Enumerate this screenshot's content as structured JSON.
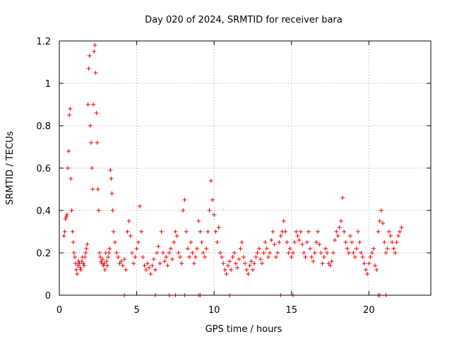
{
  "chart_data": {
    "type": "scatter",
    "title": "Day 020 of 2024, SRMTID for receiver bara",
    "xlabel": "GPS time / hours",
    "ylabel": "SRMTID / TECUs",
    "xlim": [
      0,
      24
    ],
    "ylim": [
      0,
      1.2
    ],
    "xticks": [
      0,
      5,
      10,
      15,
      20
    ],
    "yticks": [
      0,
      0.2,
      0.4,
      0.6,
      0.8,
      1,
      1.2
    ],
    "xtick_labels": [
      "0",
      "5",
      "10",
      "15",
      "20"
    ],
    "ytick_labels": [
      "0",
      "0.2",
      "0.4",
      "0.6",
      "0.8",
      "1",
      "1.2"
    ],
    "grid": true,
    "marker": "+",
    "series_color": "#ee0000",
    "series": [
      {
        "name": "SRMTID",
        "x": [
          0.0,
          0.05,
          0.1,
          0.15,
          0.2,
          0.25,
          0.3,
          0.35,
          0.4,
          0.45,
          0.5,
          0.55,
          0.6,
          0.65,
          0.7,
          0.75,
          0.8,
          0.85,
          0.9,
          0.95,
          1.0,
          1.05,
          1.1,
          1.15,
          1.2,
          1.25,
          1.3,
          1.35,
          1.4,
          1.45,
          1.5,
          1.55,
          1.6,
          1.65,
          1.7,
          1.75,
          1.8,
          1.85,
          1.9,
          1.95,
          2.0,
          2.05,
          2.1,
          2.15,
          2.2,
          2.25,
          2.3,
          2.35,
          2.4,
          2.45,
          2.5,
          2.55,
          2.6,
          2.65,
          2.7,
          2.75,
          2.8,
          2.85,
          2.9,
          2.95,
          3.0,
          3.05,
          3.1,
          3.15,
          3.2,
          3.25,
          3.3,
          3.35,
          3.4,
          3.45,
          3.5,
          3.6,
          3.7,
          3.8,
          3.9,
          4.0,
          4.1,
          4.2,
          4.3,
          4.4,
          4.5,
          4.6,
          4.7,
          4.8,
          4.9,
          5.0,
          5.1,
          5.2,
          5.3,
          5.4,
          5.5,
          5.6,
          5.7,
          5.8,
          5.9,
          6.0,
          6.1,
          6.2,
          6.3,
          6.4,
          6.5,
          6.6,
          6.7,
          6.8,
          6.9,
          7.0,
          7.1,
          7.2,
          7.3,
          7.4,
          7.5,
          7.6,
          7.7,
          7.8,
          7.9,
          8.0,
          8.1,
          8.2,
          8.3,
          8.4,
          8.5,
          8.6,
          8.7,
          8.8,
          8.9,
          9.0,
          9.1,
          9.2,
          9.3,
          9.4,
          9.5,
          9.6,
          9.7,
          9.8,
          9.9,
          10.0,
          10.1,
          10.2,
          10.3,
          10.4,
          10.5,
          10.6,
          10.7,
          10.8,
          10.9,
          11.0,
          11.1,
          11.2,
          11.3,
          11.4,
          11.5,
          11.6,
          11.7,
          11.8,
          11.9,
          12.0,
          12.1,
          12.2,
          12.3,
          12.4,
          12.5,
          12.6,
          12.7,
          12.8,
          12.9,
          13.0,
          13.1,
          13.2,
          13.3,
          13.4,
          13.5,
          13.6,
          13.7,
          13.8,
          13.9,
          14.0,
          14.1,
          14.2,
          14.3,
          14.4,
          14.5,
          14.6,
          14.7,
          14.8,
          14.9,
          15.0,
          15.1,
          15.2,
          15.3,
          15.4,
          15.5,
          15.6,
          15.7,
          15.8,
          15.9,
          16.0,
          16.1,
          16.2,
          16.3,
          16.4,
          16.5,
          16.6,
          16.7,
          16.8,
          16.9,
          17.0,
          17.1,
          17.2,
          17.3,
          17.4,
          17.5,
          17.6,
          17.7,
          17.8,
          17.9,
          18.0,
          18.1,
          18.2,
          18.3,
          18.4,
          18.5,
          18.6,
          18.7,
          18.8,
          18.9,
          19.0,
          19.1,
          19.2,
          19.3,
          19.4,
          19.5,
          19.6,
          19.7,
          19.8,
          19.9,
          20.0,
          20.1,
          20.2,
          20.3,
          20.4,
          20.5,
          20.6,
          20.7,
          20.8,
          20.9,
          21.0,
          21.1,
          21.2,
          21.3,
          21.4,
          21.5,
          21.6,
          21.7,
          21.8,
          21.9,
          22.0,
          22.1,
          22.2,
          22.3,
          22.4,
          22.5,
          22.6,
          22.7,
          0.28,
          0.3,
          0.36,
          0.37,
          0.38,
          0.6,
          0.68,
          0.85,
          0.88,
          0.55,
          0.4,
          0.3,
          0.25,
          0.2,
          0.18,
          0.15,
          0.12,
          0.1,
          0.14,
          0.16,
          0.15,
          0.13,
          0.12,
          0.16,
          0.18,
          0.15,
          0.14,
          0.18,
          0.2,
          0.22,
          0.24,
          0.9,
          1.07,
          1.13,
          0.8,
          0.72,
          0.6,
          0.5,
          0.9,
          1.15,
          1.18,
          1.05,
          0.86,
          0.72,
          0.5,
          0.4,
          0.2,
          0.18,
          0.16,
          0.15,
          0.17,
          0.14,
          0.15,
          0.12,
          0.2,
          0.16,
          0.14,
          0.18,
          0.2,
          0.22,
          0.59,
          0.55,
          0.48,
          0.4,
          0.3,
          0.25,
          0.2,
          0.18,
          0.15,
          0.16,
          0.14,
          0.17,
          0.12,
          0.3,
          0.35,
          0.28,
          0.2,
          0.15,
          0.18,
          0.22,
          0.25,
          0.42,
          0.3,
          0.18,
          0.14,
          0.12,
          0.15,
          0.13,
          0.1,
          0.14,
          0.17,
          0.12,
          0.2,
          0.23,
          0.15,
          0.3,
          0.2,
          0.16,
          0.18,
          0.14,
          0.2,
          0.22,
          0.17,
          0.25,
          0.3,
          0.28,
          0.2,
          0.18,
          0.15,
          0.4,
          0.45,
          0.3,
          0.22,
          0.18,
          0.25,
          0.2,
          0.15,
          0.18,
          0.22,
          0.35,
          0.3,
          0.25,
          0.2,
          0.18,
          0.22,
          0.3,
          0.4,
          0.54,
          0.45,
          0.38,
          0.3,
          0.25,
          0.32,
          0.2,
          0.18,
          0.15,
          0.12,
          0.1,
          0.14,
          0.16,
          0.12,
          0.18,
          0.2,
          0.15,
          0.13,
          0.17,
          0.22,
          0.25,
          0.18,
          0.15,
          0.12,
          0.1,
          0.14,
          0.16,
          0.12,
          0.15,
          0.18,
          0.2,
          0.22,
          0.17,
          0.15,
          0.2,
          0.25,
          0.22,
          0.18,
          0.2,
          0.26,
          0.3,
          0.24,
          0.18,
          0.2,
          0.25,
          0.28,
          0.3,
          0.35,
          0.3,
          0.25,
          0.2,
          0.22,
          0.18,
          0.2,
          0.25,
          0.3,
          0.28,
          0.26,
          0.3,
          0.24,
          0.2,
          0.18,
          0.25,
          0.3,
          0.22,
          0.18,
          0.16,
          0.2,
          0.25,
          0.3,
          0.24,
          0.2,
          0.15,
          0.18,
          0.22,
          0.2,
          0.15,
          0.14,
          0.16,
          0.2,
          0.26,
          0.3,
          0.28,
          0.32,
          0.35,
          0.46,
          0.3,
          0.25,
          0.22,
          0.2,
          0.28,
          0.25,
          0.2,
          0.18,
          0.22,
          0.3,
          0.25,
          0.2,
          0.18,
          0.15,
          0.12,
          0.1,
          0.15,
          0.18,
          0.2,
          0.22,
          0.14,
          0.12,
          0.3,
          0.35,
          0.4,
          0.34,
          0.25,
          0.2,
          0.22,
          0.3,
          0.28,
          0.25,
          0.22,
          0.2,
          0.25,
          0.28,
          0.3,
          0.32
        ]
      }
    ],
    "zero_line_x": [
      4.2,
      6.2,
      7.1,
      7.5,
      8.1,
      9.0,
      9.1,
      11.0,
      14.3,
      15.1,
      20.6,
      20.7,
      21.1
    ]
  }
}
